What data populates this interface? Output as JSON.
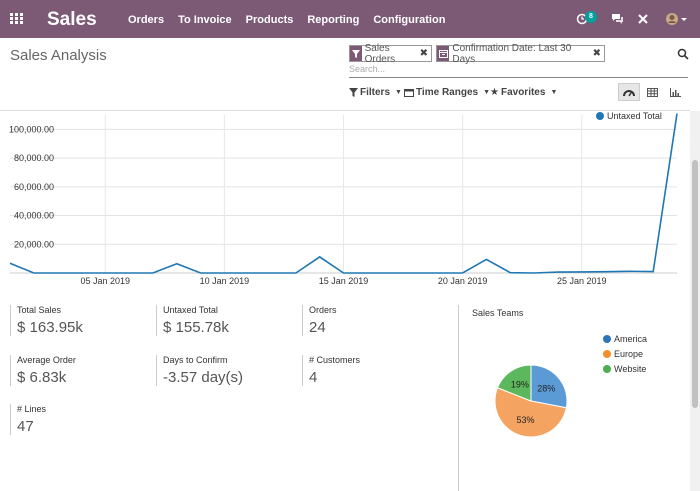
{
  "nav": {
    "app_name": "Sales",
    "menu": [
      "Orders",
      "To Invoice",
      "Products",
      "Reporting",
      "Configuration"
    ],
    "notif_count": "8",
    "colors": {
      "bar": "#7c5a76"
    }
  },
  "control": {
    "title": "Sales Analysis",
    "facets": [
      {
        "label": "Sales Orders",
        "icon": "filter-icon"
      },
      {
        "label": "Confirmation Date: Last 30 Days",
        "icon": "calendar-icon"
      }
    ],
    "search_placeholder": "Search...",
    "dropdowns": [
      "Filters",
      "Time Ranges",
      "Favorites"
    ]
  },
  "chart_data": {
    "type": "line",
    "legend": "Untaxed Total",
    "color": "#1f77b4",
    "y_ticks": [
      "100,000.00",
      "80,000.00",
      "60,000.00",
      "40,000.00",
      "20,000.00"
    ],
    "y_tick_values": [
      100000,
      80000,
      60000,
      40000,
      20000
    ],
    "ylim": [
      0,
      110000
    ],
    "x_ticks": [
      "05 Jan 2019",
      "10 Jan 2019",
      "15 Jan 2019",
      "20 Jan 2019",
      "25 Jan 2019"
    ],
    "x_tick_days": [
      5,
      10,
      15,
      20,
      25
    ],
    "x_range": [
      1,
      29
    ],
    "points": [
      [
        1,
        6800
      ],
      [
        2,
        0
      ],
      [
        3,
        0
      ],
      [
        4,
        0
      ],
      [
        5,
        0
      ],
      [
        6,
        0
      ],
      [
        7,
        0
      ],
      [
        8,
        6500
      ],
      [
        9,
        0
      ],
      [
        10,
        0
      ],
      [
        11,
        0
      ],
      [
        12,
        0
      ],
      [
        13,
        0
      ],
      [
        14,
        11200
      ],
      [
        15,
        0
      ],
      [
        16,
        0
      ],
      [
        17,
        0
      ],
      [
        18,
        0
      ],
      [
        19,
        0
      ],
      [
        20,
        0
      ],
      [
        21,
        9500
      ],
      [
        22,
        200
      ],
      [
        23,
        0
      ],
      [
        24,
        600
      ],
      [
        25,
        800
      ],
      [
        26,
        900
      ],
      [
        27,
        1200
      ],
      [
        28,
        1000
      ],
      [
        29,
        111000
      ]
    ]
  },
  "kpis": [
    {
      "label": "Total Sales",
      "value": "$ 163.95k"
    },
    {
      "label": "Untaxed Total",
      "value": "$ 155.78k"
    },
    {
      "label": "Orders",
      "value": "24"
    },
    {
      "label": "Average Order",
      "value": "$ 6.83k"
    },
    {
      "label": "Days to Confirm",
      "value": "-3.57 day(s)"
    },
    {
      "label": "# Customers",
      "value": "4"
    },
    {
      "label": "# Lines",
      "value": "47"
    }
  ],
  "pie": {
    "title": "Sales Teams",
    "slices": [
      {
        "label": "America",
        "value": 28,
        "text": "28%",
        "color": "#5b9bd5"
      },
      {
        "label": "Europe",
        "value": 53,
        "text": "53%",
        "color": "#f4a460"
      },
      {
        "label": "Website",
        "value": 19,
        "text": "19%",
        "color": "#5cb85c"
      }
    ],
    "legend_colors": [
      "#2e75b6",
      "#f28e2b",
      "#4caf50"
    ]
  }
}
